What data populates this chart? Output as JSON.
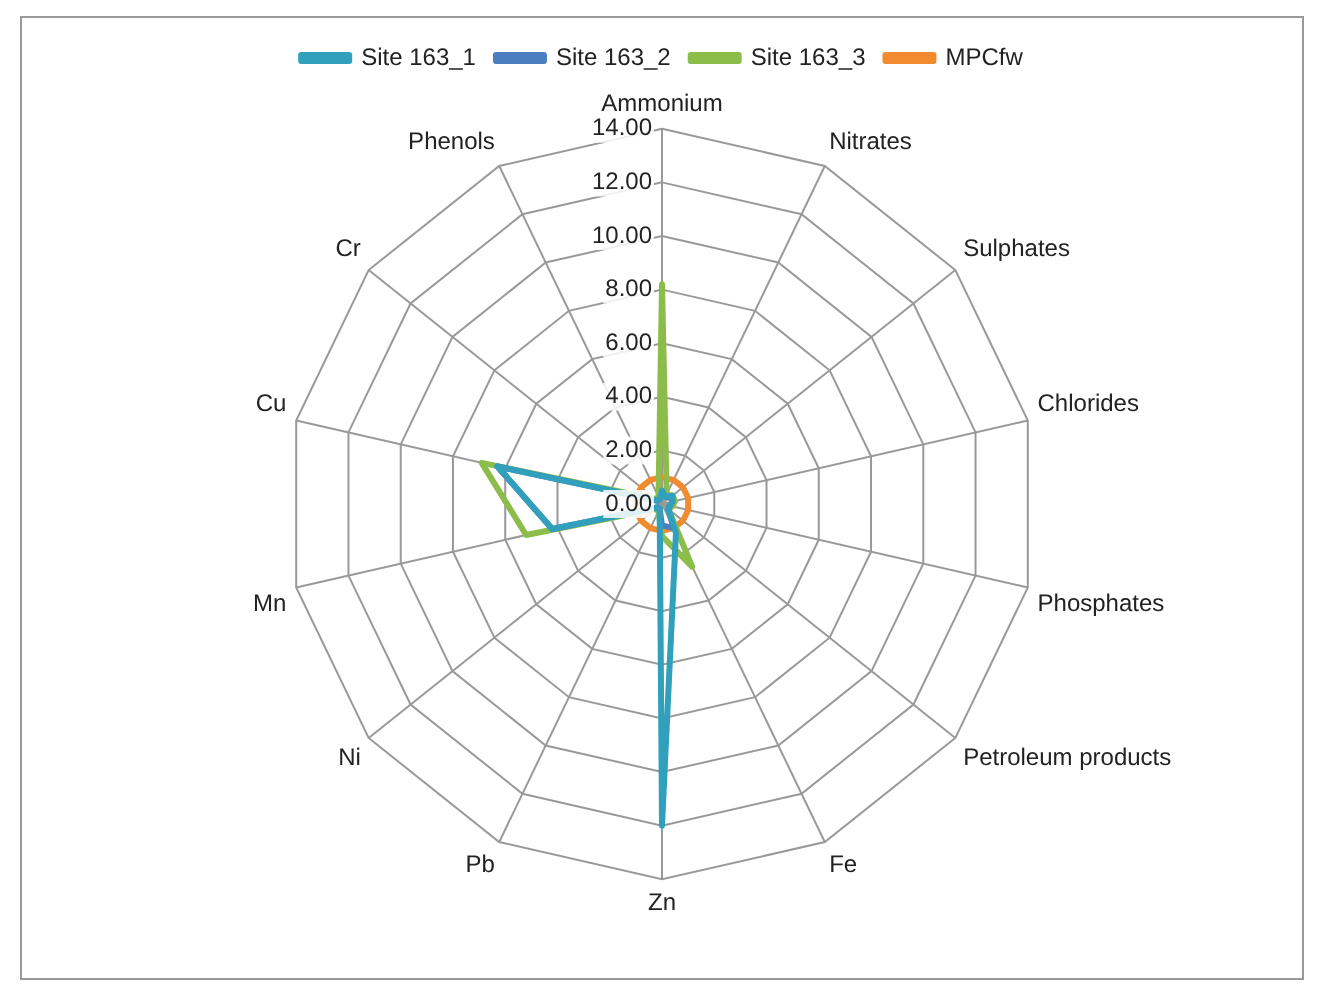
{
  "chart_data": {
    "type": "radar",
    "categories": [
      "Ammonium",
      "Nitrates",
      "Sulphates",
      "Chlorides",
      "Phosphates",
      "Petroleum products",
      "Fe",
      "Zn",
      "Pb",
      "Ni",
      "Mn",
      "Cu",
      "Cr",
      "Phenols"
    ],
    "series": [
      {
        "name": "Site 163_1",
        "color": "#31a0bd",
        "values": [
          0.5,
          0.3,
          0.5,
          0.4,
          0.3,
          0.3,
          1.2,
          12.0,
          0.2,
          0.2,
          4.2,
          6.3,
          0.2,
          0.2
        ]
      },
      {
        "name": "Site 163_2",
        "color": "#4a7ebf",
        "values": [
          0.4,
          0.3,
          0.4,
          0.4,
          0.3,
          0.3,
          1.0,
          0.8,
          0.2,
          0.2,
          4.2,
          6.3,
          0.2,
          0.2
        ]
      },
      {
        "name": "Site 163_3",
        "color": "#8cbd4b",
        "values": [
          8.2,
          0.4,
          0.5,
          0.5,
          0.4,
          0.3,
          2.6,
          1.2,
          0.3,
          0.3,
          5.2,
          6.9,
          0.3,
          0.3
        ]
      },
      {
        "name": "MPCfw",
        "color": "#f28b30",
        "values": [
          1.0,
          1.0,
          1.0,
          1.0,
          1.0,
          1.0,
          1.0,
          1.0,
          1.0,
          1.0,
          1.0,
          1.0,
          1.0,
          1.0
        ]
      }
    ],
    "ylim": [
      0,
      14
    ],
    "yticks": [
      {
        "value": 0,
        "label": "0.00"
      },
      {
        "value": 2,
        "label": "2.00"
      },
      {
        "value": 4,
        "label": "4.00"
      },
      {
        "value": 6,
        "label": "6.00"
      },
      {
        "value": 8,
        "label": "8.00"
      },
      {
        "value": 10,
        "label": "10.00"
      },
      {
        "value": 12,
        "label": "12.00"
      },
      {
        "value": 14,
        "label": "14.00"
      }
    ],
    "grid": true,
    "legend": "top",
    "marker": "none"
  }
}
